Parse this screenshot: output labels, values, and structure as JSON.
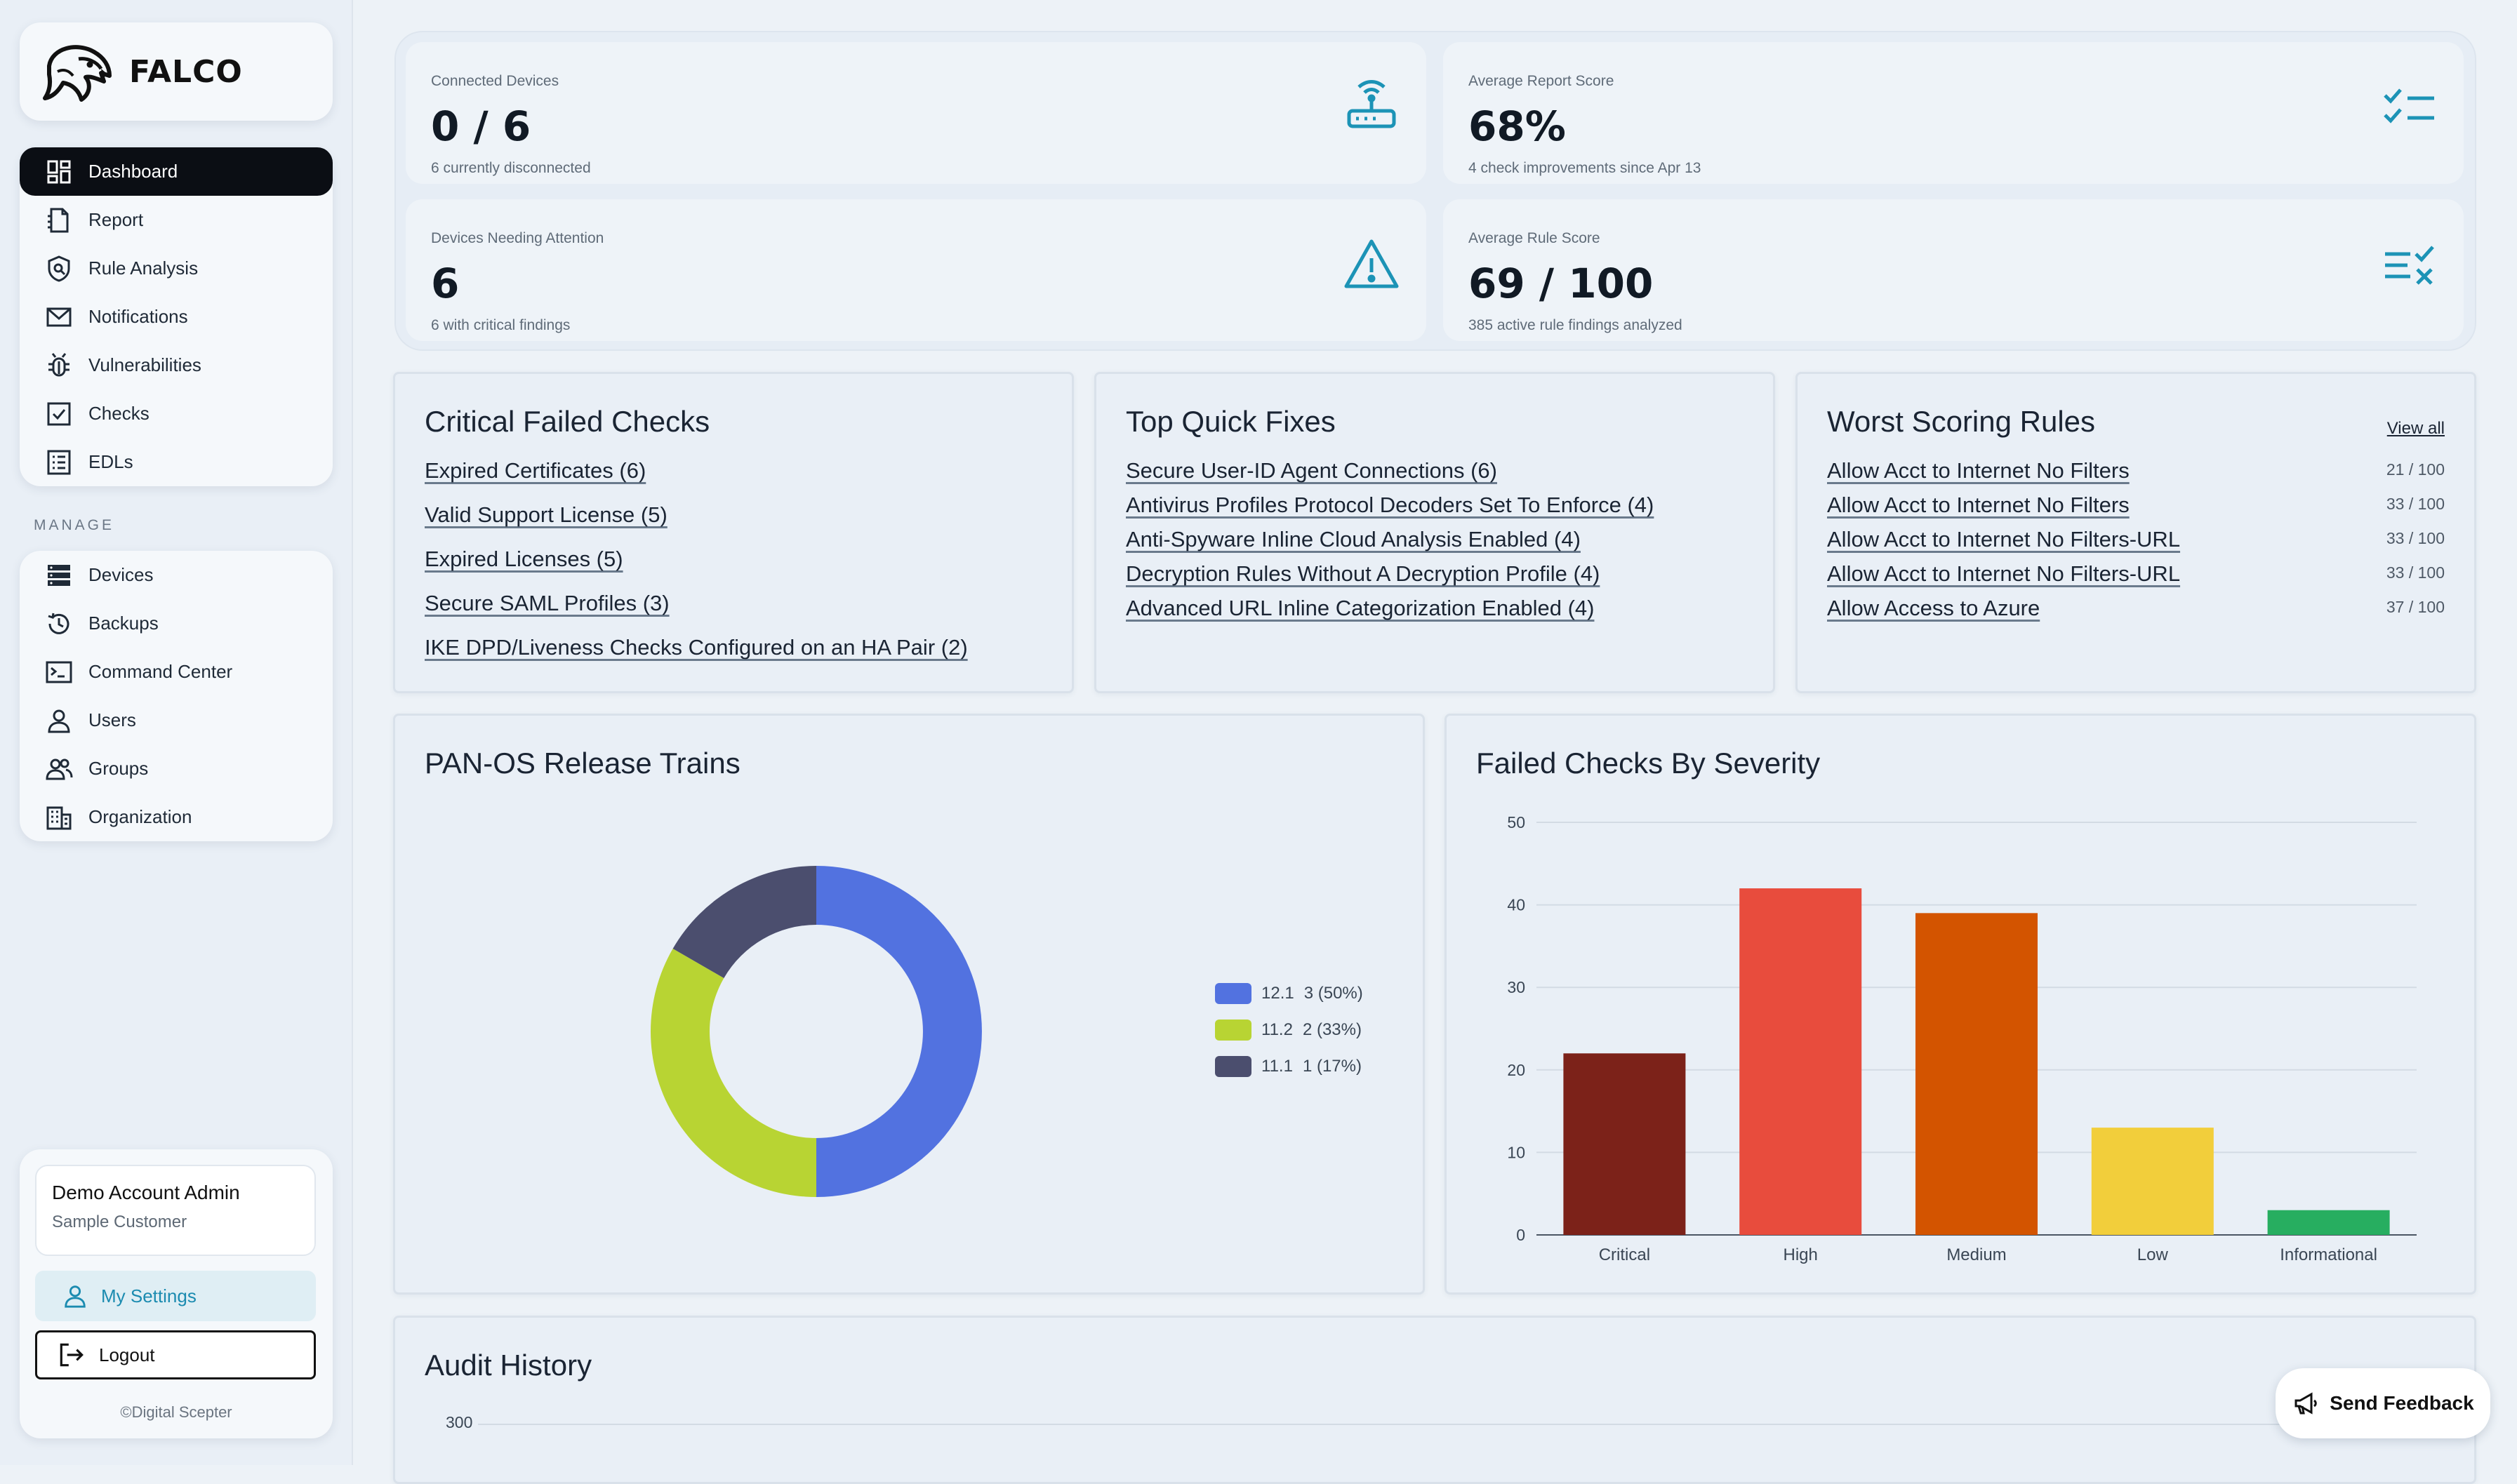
{
  "brand": {
    "name": "FALCO"
  },
  "nav": {
    "items": [
      {
        "label": "Dashboard",
        "icon": "dashboard-icon"
      },
      {
        "label": "Report",
        "icon": "report-icon"
      },
      {
        "label": "Rule Analysis",
        "icon": "rule-analysis-icon"
      },
      {
        "label": "Notifications",
        "icon": "mail-icon"
      },
      {
        "label": "Vulnerabilities",
        "icon": "bug-icon"
      },
      {
        "label": "Checks",
        "icon": "checkbox-icon"
      },
      {
        "label": "EDLs",
        "icon": "list-icon"
      }
    ],
    "manage_label": "MANAGE",
    "manage_items": [
      {
        "label": "Devices",
        "icon": "server-icon"
      },
      {
        "label": "Backups",
        "icon": "history-icon"
      },
      {
        "label": "Command Center",
        "icon": "terminal-icon"
      },
      {
        "label": "Users",
        "icon": "user-icon"
      },
      {
        "label": "Groups",
        "icon": "group-icon"
      },
      {
        "label": "Organization",
        "icon": "building-icon"
      }
    ]
  },
  "account": {
    "name": "Demo Account Admin",
    "org": "Sample Customer",
    "settings_label": "My Settings",
    "logout_label": "Logout",
    "copyright": "©Digital Scepter"
  },
  "stats": {
    "connected": {
      "label": "Connected Devices",
      "value": "0 / 6",
      "sub": "6 currently disconnected",
      "icon": "router-icon"
    },
    "report_score": {
      "label": "Average Report Score",
      "value": "68%",
      "sub": "4 check improvements since Apr 13",
      "icon": "checklist-icon"
    },
    "attention": {
      "label": "Devices Needing Attention",
      "value": "6",
      "sub": "6 with critical findings",
      "icon": "warning-icon"
    },
    "rule_score": {
      "label": "Average Rule Score",
      "value": "69 / 100",
      "sub": "385 active rule findings analyzed",
      "icon": "rule-score-icon"
    }
  },
  "critical_failed": {
    "title": "Critical Failed Checks",
    "items": [
      "Expired Certificates (6)",
      "Valid Support License (5)",
      "Expired Licenses (5)",
      "Secure SAML Profiles (3)",
      "IKE DPD/Liveness Checks Configured on an HA Pair (2)"
    ]
  },
  "quick_fixes": {
    "title": "Top Quick Fixes",
    "items": [
      "Secure User-ID Agent Connections (6)",
      "Antivirus Profiles Protocol Decoders Set To Enforce (4)",
      "Anti-Spyware Inline Cloud Analysis Enabled (4)",
      "Decryption Rules Without A Decryption Profile (4)",
      "Advanced URL Inline Categorization Enabled (4)"
    ]
  },
  "worst_rules": {
    "title": "Worst Scoring Rules",
    "view_all": "View all",
    "items": [
      {
        "name": "Allow Acct to Internet No Filters",
        "score": "21 / 100"
      },
      {
        "name": "Allow Acct to Internet No Filters",
        "score": "33 / 100"
      },
      {
        "name": "Allow Acct to Internet No Filters-URL",
        "score": "33 / 100"
      },
      {
        "name": "Allow Acct to Internet No Filters-URL",
        "score": "33 / 100"
      },
      {
        "name": "Allow Access to Azure",
        "score": "37 / 100"
      }
    ]
  },
  "release_trains": {
    "title": "PAN-OS Release Trains"
  },
  "failed_by_severity": {
    "title": "Failed Checks By Severity"
  },
  "audit_history": {
    "title": "Audit History",
    "y_top_tick": "300"
  },
  "feedback": {
    "label": "Send Feedback"
  },
  "chart_data": [
    {
      "type": "pie",
      "title": "PAN-OS Release Trains",
      "donut": true,
      "categories": [
        "12.1",
        "11.2",
        "11.1"
      ],
      "values": [
        3,
        2,
        1
      ],
      "labels": [
        "3 (50%)",
        "2 (33%)",
        "1 (17%)"
      ],
      "colors": [
        "#5272e0",
        "#b8d433",
        "#4b4e6e"
      ],
      "legend": "right"
    },
    {
      "type": "bar",
      "title": "Failed Checks By Severity",
      "categories": [
        "Critical",
        "High",
        "Medium",
        "Low",
        "Informational"
      ],
      "values": [
        22,
        42,
        39,
        13,
        3
      ],
      "colors": [
        "#7c2219",
        "#e84c3d",
        "#d35400",
        "#f2ce3b",
        "#27ae60"
      ],
      "ylim": [
        0,
        50
      ],
      "yticks": [
        0,
        10,
        20,
        30,
        40,
        50
      ],
      "grid": true
    }
  ]
}
